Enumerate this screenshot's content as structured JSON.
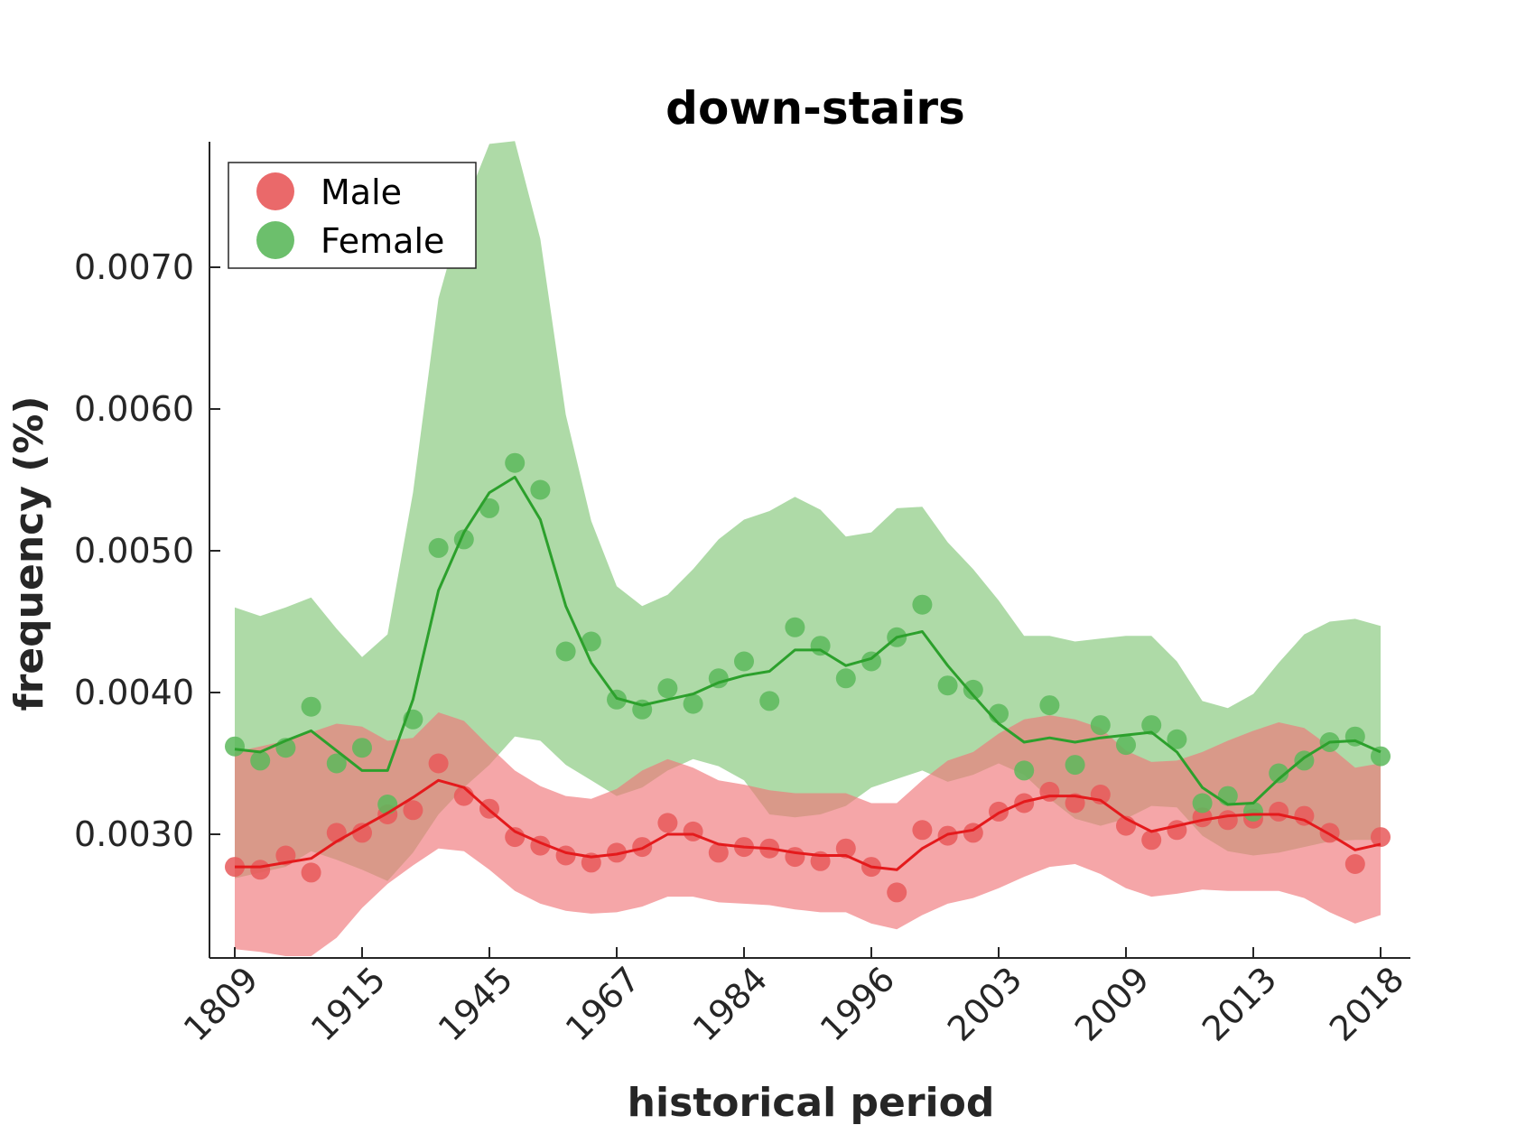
{
  "chart_data": {
    "type": "scatter",
    "title": "down-stairs",
    "xlabel": "historical period",
    "ylabel": "frequency (%)",
    "ylim": [
      0.00215,
      0.00788
    ],
    "yticks": [
      0.003,
      0.004,
      0.005,
      0.006,
      0.007
    ],
    "ytick_labels": [
      "0.0030",
      "0.0040",
      "0.0050",
      "0.0060",
      "0.0070"
    ],
    "xtick_labels": [
      "1809",
      "1915",
      "1945",
      "1967",
      "1984",
      "1996",
      "2003",
      "2009",
      "2013",
      "2018"
    ],
    "xtick_positions": [
      0,
      5,
      10,
      15,
      20,
      25,
      30,
      35,
      40,
      45
    ],
    "xlim": [
      -1,
      46.1
    ],
    "legend_position": "top-left",
    "grid": false,
    "series": [
      {
        "name": "Male",
        "color": "#e41a1c",
        "point_color": "#e8595a",
        "band_color": "#f0777a",
        "points": [
          0.00277,
          0.00275,
          0.00285,
          0.00273,
          0.00301,
          0.00301,
          0.00314,
          0.00317,
          0.0035,
          0.00327,
          0.00318,
          0.00298,
          0.00292,
          0.00285,
          0.0028,
          0.00287,
          0.00291,
          0.00308,
          0.00302,
          0.00287,
          0.00291,
          0.0029,
          0.00284,
          0.00281,
          0.0029,
          0.00277,
          0.00259,
          0.00303,
          0.00299,
          0.00301,
          0.00316,
          0.00322,
          0.0033,
          0.00322,
          0.00328,
          0.00306,
          0.00296,
          0.00303,
          0.00312,
          0.0031,
          0.00311,
          0.00316,
          0.00313,
          0.00301,
          0.00279,
          0.00298
        ],
        "trend": [
          0.00277,
          0.00277,
          0.0028,
          0.00283,
          0.00295,
          0.00305,
          0.00315,
          0.00326,
          0.00338,
          0.00333,
          0.00317,
          0.00302,
          0.00294,
          0.00287,
          0.00284,
          0.00286,
          0.0029,
          0.003,
          0.003,
          0.00293,
          0.00291,
          0.0029,
          0.00287,
          0.00285,
          0.00285,
          0.00277,
          0.00275,
          0.0029,
          0.003,
          0.00303,
          0.00315,
          0.00323,
          0.00327,
          0.00327,
          0.00324,
          0.00311,
          0.00302,
          0.00306,
          0.0031,
          0.00313,
          0.00314,
          0.00314,
          0.0031,
          0.003,
          0.00289,
          0.00293
        ],
        "band_upper": [
          0.00358,
          0.00362,
          0.00366,
          0.00372,
          0.00378,
          0.00376,
          0.00366,
          0.00368,
          0.00386,
          0.0038,
          0.00362,
          0.00345,
          0.00334,
          0.00327,
          0.00325,
          0.00332,
          0.00345,
          0.00353,
          0.00347,
          0.00338,
          0.00335,
          0.00331,
          0.00329,
          0.00329,
          0.00329,
          0.00322,
          0.00322,
          0.00338,
          0.00352,
          0.00358,
          0.00371,
          0.00381,
          0.00384,
          0.00381,
          0.00375,
          0.00359,
          0.00351,
          0.00352,
          0.00358,
          0.00366,
          0.00373,
          0.00379,
          0.00375,
          0.00362,
          0.00347,
          0.0035
        ],
        "band_lower": [
          0.00219,
          0.00217,
          0.00214,
          0.00214,
          0.00227,
          0.00248,
          0.00265,
          0.00278,
          0.0029,
          0.00288,
          0.00275,
          0.0026,
          0.00251,
          0.00246,
          0.00244,
          0.00245,
          0.00249,
          0.00256,
          0.00256,
          0.00252,
          0.00251,
          0.0025,
          0.00247,
          0.00245,
          0.00245,
          0.00237,
          0.00233,
          0.00243,
          0.00251,
          0.00255,
          0.00262,
          0.0027,
          0.00277,
          0.00279,
          0.00272,
          0.00262,
          0.00256,
          0.00258,
          0.00261,
          0.0026,
          0.0026,
          0.0026,
          0.00255,
          0.00245,
          0.00237,
          0.00243
        ]
      },
      {
        "name": "Female",
        "color": "#2ca02c",
        "point_color": "#5cb85c",
        "band_color": "#8fcc85",
        "points": [
          0.00362,
          0.00352,
          0.00361,
          0.0039,
          0.0035,
          0.00361,
          0.00321,
          0.00381,
          0.00502,
          0.00508,
          0.0053,
          0.00562,
          0.00543,
          0.00429,
          0.00436,
          0.00395,
          0.00388,
          0.00403,
          0.00392,
          0.0041,
          0.00422,
          0.00394,
          0.00446,
          0.00433,
          0.0041,
          0.00422,
          0.00439,
          0.00462,
          0.00405,
          0.00402,
          0.00385,
          0.00345,
          0.00391,
          0.00349,
          0.00377,
          0.00363,
          0.00377,
          0.00367,
          0.00322,
          0.00327,
          0.00316,
          0.00343,
          0.00352,
          0.00365,
          0.00369,
          0.00355
        ],
        "trend": [
          0.0036,
          0.00358,
          0.00366,
          0.00373,
          0.00359,
          0.00345,
          0.00345,
          0.00395,
          0.00472,
          0.00513,
          0.00541,
          0.00552,
          0.00522,
          0.00461,
          0.00421,
          0.00396,
          0.00391,
          0.00395,
          0.00399,
          0.00407,
          0.00412,
          0.00415,
          0.0043,
          0.0043,
          0.00419,
          0.00424,
          0.00439,
          0.00443,
          0.00419,
          0.00398,
          0.00378,
          0.00365,
          0.00368,
          0.00365,
          0.00368,
          0.0037,
          0.00372,
          0.00358,
          0.00333,
          0.00321,
          0.00322,
          0.00339,
          0.00354,
          0.00365,
          0.00366,
          0.00358
        ],
        "band_upper": [
          0.0046,
          0.00454,
          0.0046,
          0.00467,
          0.00445,
          0.00425,
          0.00441,
          0.00541,
          0.00678,
          0.00742,
          0.00787,
          0.00789,
          0.0072,
          0.00596,
          0.00521,
          0.00475,
          0.00461,
          0.00469,
          0.00487,
          0.00508,
          0.00522,
          0.00528,
          0.00538,
          0.00529,
          0.0051,
          0.00513,
          0.0053,
          0.00531,
          0.00506,
          0.00487,
          0.00465,
          0.0044,
          0.0044,
          0.00436,
          0.00438,
          0.0044,
          0.0044,
          0.00422,
          0.00394,
          0.00389,
          0.00399,
          0.00421,
          0.00441,
          0.0045,
          0.00452,
          0.00447
        ],
        "band_lower": [
          0.00269,
          0.00273,
          0.00277,
          0.00288,
          0.00282,
          0.00275,
          0.00267,
          0.00287,
          0.00314,
          0.00333,
          0.00349,
          0.00369,
          0.00366,
          0.00349,
          0.00338,
          0.00327,
          0.00333,
          0.00345,
          0.00353,
          0.00348,
          0.00338,
          0.00314,
          0.00312,
          0.00314,
          0.0032,
          0.00333,
          0.00339,
          0.00345,
          0.00337,
          0.00342,
          0.0035,
          0.00342,
          0.00325,
          0.00311,
          0.00306,
          0.00311,
          0.0032,
          0.00319,
          0.00299,
          0.00288,
          0.00285,
          0.00287,
          0.00291,
          0.00295,
          0.00296,
          0.00296
        ]
      }
    ]
  }
}
